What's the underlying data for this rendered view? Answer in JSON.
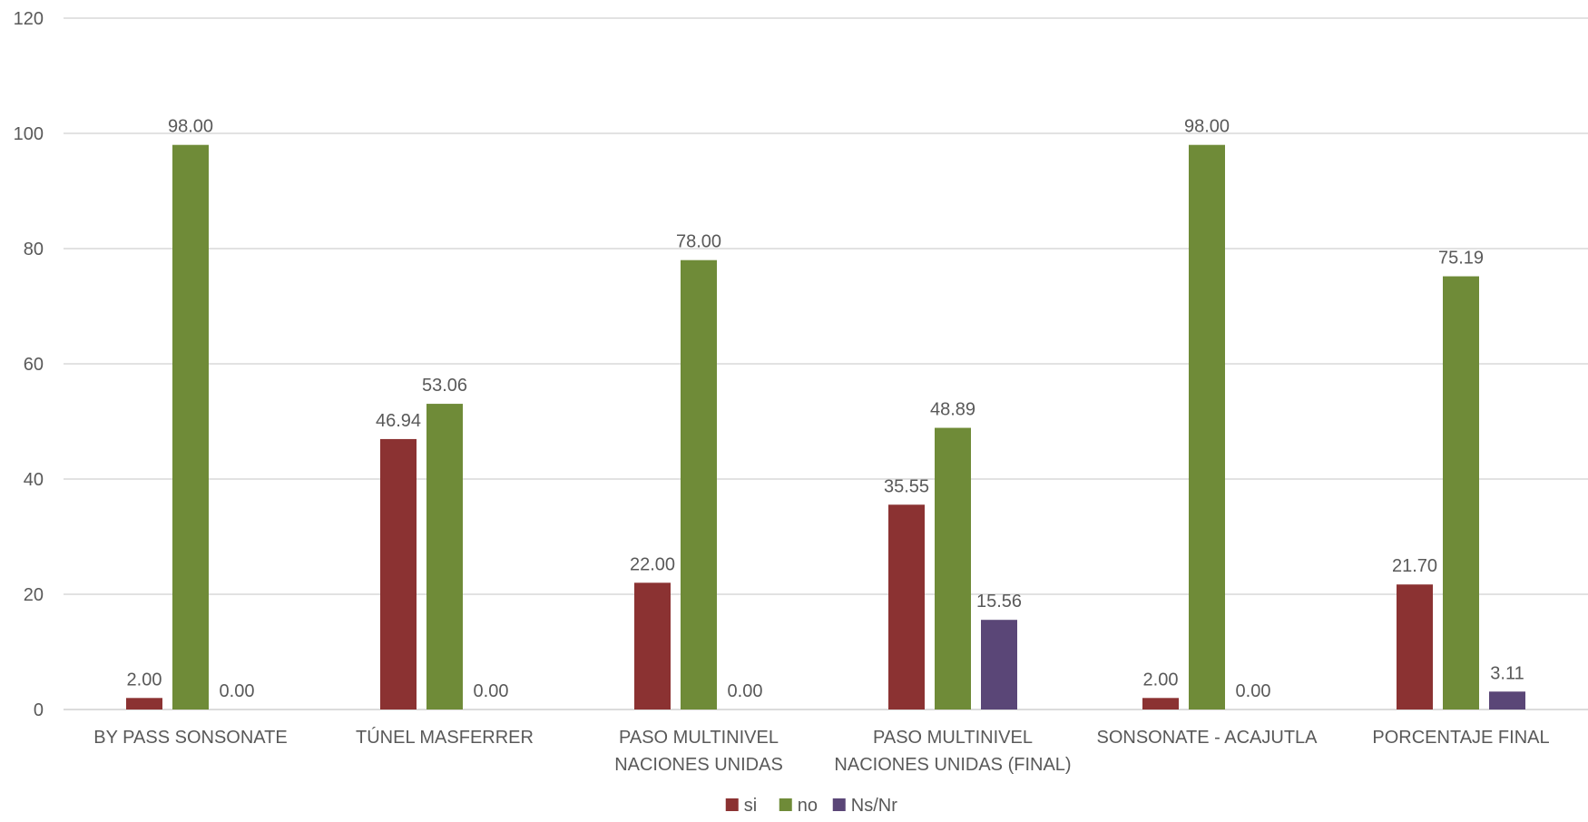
{
  "chart_data": {
    "type": "bar",
    "title": "",
    "xlabel": "",
    "ylabel": "",
    "ylim": [
      0,
      120
    ],
    "yticks": [
      "0",
      "20",
      "40",
      "60",
      "80",
      "100",
      "120"
    ],
    "grid": true,
    "legend_position": "bottom",
    "categories": [
      [
        "BY PASS SONSONATE"
      ],
      [
        "TÚNEL MASFERRER"
      ],
      [
        "PASO MULTINIVEL",
        "NACIONES UNIDAS"
      ],
      [
        "PASO MULTINIVEL",
        "NACIONES UNIDAS (FINAL)"
      ],
      [
        "SONSONATE - ACAJUTLA"
      ],
      [
        "PORCENTAJE FINAL"
      ]
    ],
    "series": [
      {
        "name": "si",
        "color": "#8B3232",
        "values": [
          2.0,
          46.94,
          22.0,
          35.55,
          2.0,
          21.7
        ],
        "labels": [
          "2.00",
          "46.94",
          "22.00",
          "35.55",
          "2.00",
          "21.70"
        ]
      },
      {
        "name": "no",
        "color": "#6F8B38",
        "values": [
          98.0,
          53.06,
          78.0,
          48.89,
          98.0,
          75.19
        ],
        "labels": [
          "98.00",
          "53.06",
          "78.00",
          "48.89",
          "98.00",
          "75.19"
        ]
      },
      {
        "name": "Ns/Nr",
        "color": "#5A4677",
        "values": [
          0.0,
          0.0,
          0.0,
          15.56,
          0.0,
          3.11
        ],
        "labels": [
          "0.00",
          "0.00",
          "0.00",
          "15.56",
          "0.00",
          "3.11"
        ]
      }
    ]
  }
}
